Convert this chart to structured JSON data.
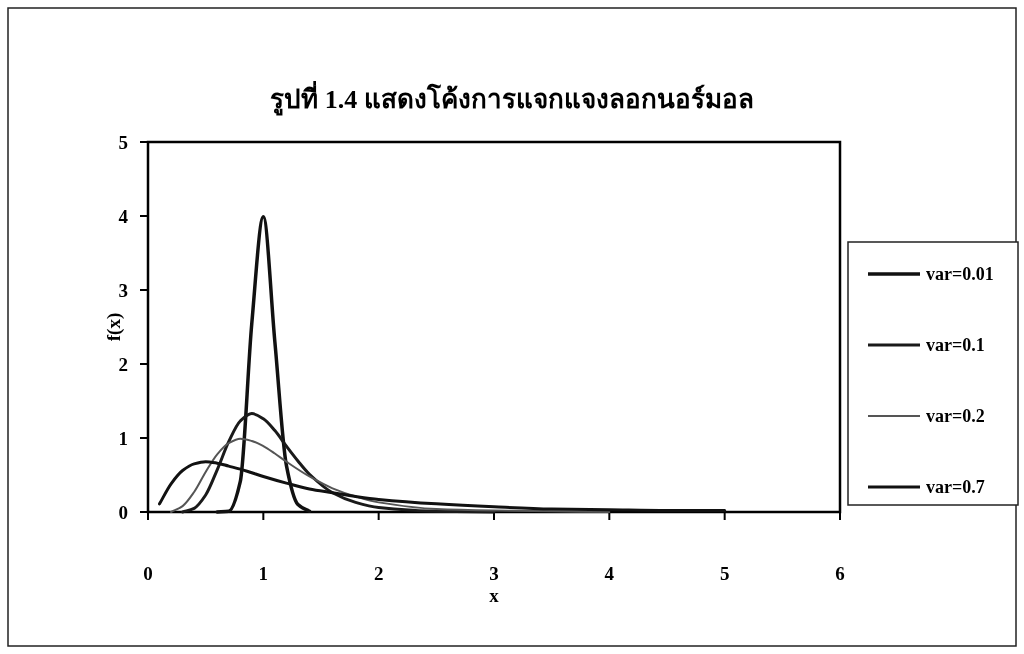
{
  "chart_data": {
    "type": "line",
    "title": "รูปที่ 1.4 แสดงโค้งการแจกแจงลอกนอร์มอล",
    "xlabel": "x",
    "ylabel": "f(x)",
    "xlim": [
      0,
      6
    ],
    "xticks": [
      0,
      1,
      2,
      3,
      4,
      5,
      6
    ],
    "ylim": [
      0,
      5
    ],
    "yticks": [
      0,
      1,
      2,
      3,
      4,
      5
    ],
    "grid": false,
    "legend": "right",
    "marker": "none",
    "line_style": "solid",
    "series": [
      {
        "name": "var=0.01",
        "color": "#111111",
        "x": [
          0.6,
          0.7,
          0.8,
          0.9,
          1.0,
          1.1,
          1.2,
          1.3,
          1.4
        ],
        "values": [
          0,
          0.01,
          0.41,
          2.55,
          3.99,
          2.3,
          0.63,
          0.1,
          0.01
        ]
      },
      {
        "name": "var=0.1",
        "color": "#1a1a1a",
        "x": [
          0.3,
          0.4,
          0.5,
          0.6,
          0.7,
          0.8,
          0.9,
          1.0,
          1.1,
          1.2,
          1.3,
          1.4,
          1.6,
          1.8,
          2.0,
          2.5,
          3.0
        ],
        "values": [
          0,
          0.05,
          0.23,
          0.57,
          0.95,
          1.23,
          1.33,
          1.26,
          1.1,
          0.89,
          0.69,
          0.51,
          0.26,
          0.13,
          0.06,
          0.01,
          0
        ]
      },
      {
        "name": "var=0.2",
        "color": "#555555",
        "x": [
          0.2,
          0.3,
          0.4,
          0.5,
          0.6,
          0.7,
          0.8,
          0.9,
          1.0,
          1.1,
          1.2,
          1.4,
          1.6,
          1.8,
          2.0,
          2.5,
          3.0,
          3.5,
          4.0
        ],
        "values": [
          0,
          0.08,
          0.27,
          0.54,
          0.78,
          0.93,
          0.99,
          0.96,
          0.89,
          0.79,
          0.68,
          0.48,
          0.32,
          0.21,
          0.13,
          0.04,
          0.02,
          0.01,
          0
        ]
      },
      {
        "name": "var=0.7",
        "color": "#111111",
        "x": [
          0.1,
          0.2,
          0.3,
          0.4,
          0.5,
          0.6,
          0.7,
          0.8,
          0.9,
          1.0,
          1.2,
          1.4,
          1.6,
          1.8,
          2.0,
          2.5,
          3.0,
          3.5,
          4.0,
          4.5,
          5.0
        ],
        "values": [
          0.11,
          0.38,
          0.56,
          0.65,
          0.68,
          0.66,
          0.62,
          0.58,
          0.53,
          0.48,
          0.39,
          0.31,
          0.26,
          0.21,
          0.17,
          0.11,
          0.07,
          0.04,
          0.03,
          0.02,
          0.02
        ]
      }
    ]
  }
}
